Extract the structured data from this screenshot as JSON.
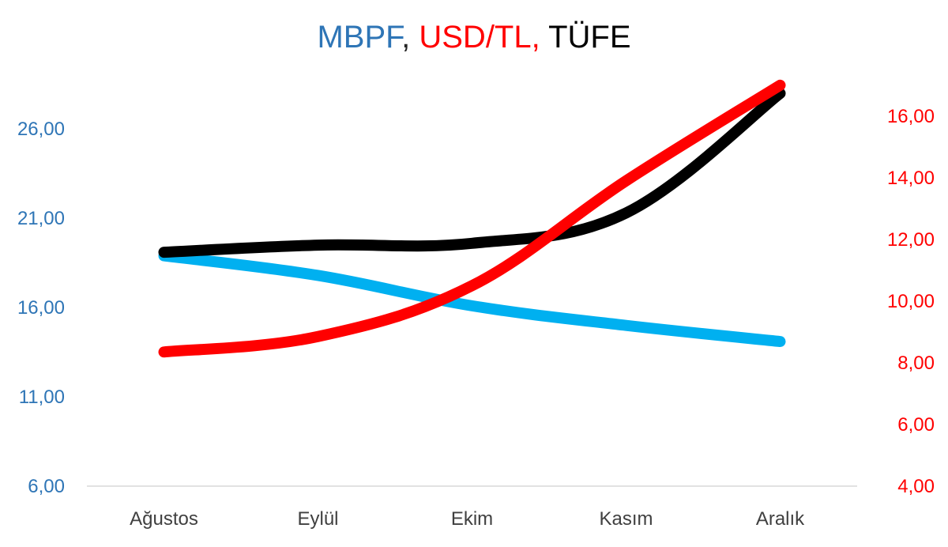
{
  "chart_data": {
    "type": "line",
    "title_parts": [
      {
        "text": "MBPF",
        "color": "#2e75b6"
      },
      {
        "text": ", ",
        "color": "#262626"
      },
      {
        "text": "USD/TL, ",
        "color": "#ff0000"
      },
      {
        "text": "TÜFE",
        "color": "#000000"
      }
    ],
    "categories": [
      "Ağustos",
      "Eylül",
      "Ekim",
      "Kasım",
      "Aralık"
    ],
    "y_left": {
      "min": 6,
      "max": 28.8,
      "ticks": [
        "6,00",
        "11,00",
        "16,00",
        "21,00",
        "26,00"
      ],
      "tick_values": [
        6,
        11,
        16,
        21,
        26
      ],
      "color": "#2e75b6"
    },
    "y_right": {
      "min": 4,
      "max": 17.2,
      "ticks": [
        "4,00",
        "6,00",
        "8,00",
        "10,00",
        "12,00",
        "14,00",
        "16,00"
      ],
      "tick_values": [
        4,
        6,
        8,
        10,
        12,
        14,
        16
      ],
      "color": "#ff0000"
    },
    "series": [
      {
        "key": "mbpf",
        "axis": "left",
        "color": "#00b0f0",
        "values": [
          18.9,
          17.8,
          16.1,
          15.0,
          14.1
        ]
      },
      {
        "key": "tufe",
        "axis": "left",
        "color": "#000000",
        "values": [
          19.1,
          19.5,
          19.6,
          21.3,
          28.0
        ]
      },
      {
        "key": "usdtl",
        "axis": "right",
        "color": "#ff0000",
        "values": [
          8.35,
          8.85,
          10.5,
          13.9,
          17.0
        ]
      }
    ],
    "grid": false,
    "legend": "none"
  }
}
